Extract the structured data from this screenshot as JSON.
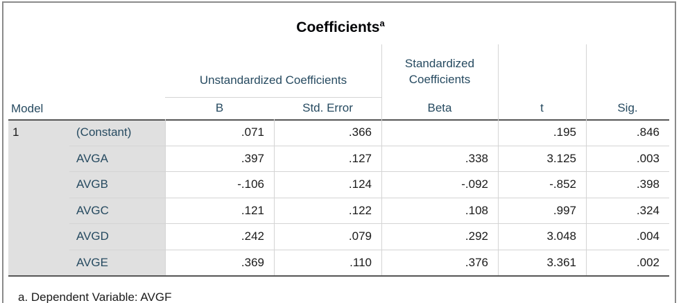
{
  "title": "Coefficients",
  "title_note": "a",
  "header": {
    "model": "Model",
    "unstandardized": "Unstandardized Coefficients",
    "standardized": "Standardized Coefficients",
    "columns": [
      "B",
      "Std. Error",
      "Beta",
      "t",
      "Sig."
    ]
  },
  "table": {
    "model": "1",
    "rows": [
      {
        "predictor": "(Constant)",
        "cells": [
          ".071",
          ".366",
          null,
          ".195",
          ".846"
        ]
      },
      {
        "predictor": "AVGA",
        "cells": [
          ".397",
          ".127",
          ".338",
          "3.125",
          ".003"
        ]
      },
      {
        "predictor": "AVGB",
        "cells": [
          "-.106",
          ".124",
          "-.092",
          "-.852",
          ".398"
        ]
      },
      {
        "predictor": "AVGC",
        "cells": [
          ".121",
          ".122",
          ".108",
          ".997",
          ".324"
        ]
      },
      {
        "predictor": "AVGD",
        "cells": [
          ".242",
          ".079",
          ".292",
          "3.048",
          ".004"
        ]
      },
      {
        "predictor": "AVGE",
        "cells": [
          ".369",
          ".110",
          ".376",
          "3.361",
          ".002"
        ]
      }
    ]
  },
  "footnote": "a. Dependent Variable: AVGF"
}
